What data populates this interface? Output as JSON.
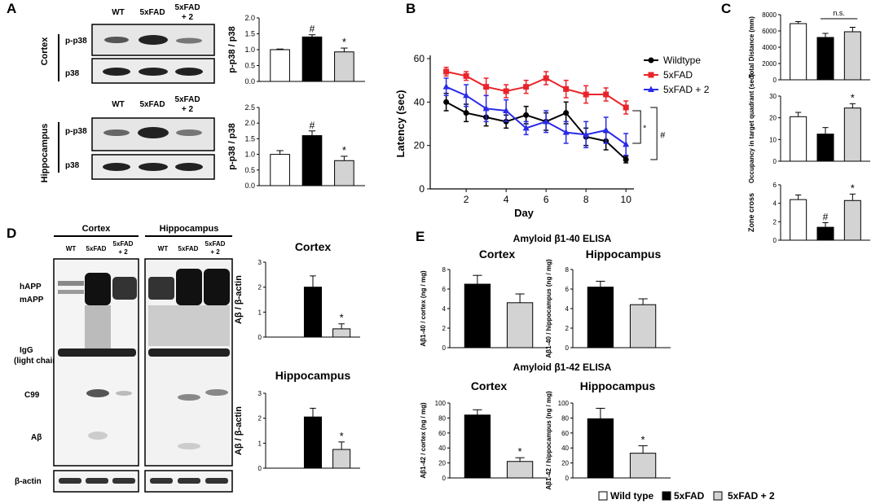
{
  "panels": {
    "A": "A",
    "B": "B",
    "C": "C",
    "D": "D",
    "E": "E"
  },
  "panelA": {
    "lanes": [
      "WT",
      "5xFAD",
      "5xFAD\n+ 2"
    ],
    "cortex": {
      "region": "Cortex",
      "bands": [
        "p-p38",
        "p38"
      ]
    },
    "hippocampus": {
      "region": "Hippocampus",
      "bands": [
        "p-p38",
        "p38"
      ]
    }
  },
  "panelD": {
    "regions": [
      "Cortex",
      "Hippocampus"
    ],
    "lanes": [
      "WT",
      "5xFAD",
      "5xFAD\n+ 2"
    ],
    "band_labels": [
      "hAPP",
      "mAPP",
      "IgG\n(light chain)",
      "C99",
      "Aβ"
    ],
    "loading": "β-actin"
  },
  "panelE": {
    "title40": "Amyloid β1-40 ELISA",
    "title42": "Amyloid β1-42 ELISA",
    "cortex": "Cortex",
    "hippocampus": "Hippocampus"
  },
  "legend": [
    "Wild type",
    "5xFAD",
    "5xFAD + 2"
  ],
  "colors": {
    "wt": "#ffffff",
    "fad": "#000000",
    "treat": "#d3d3d3",
    "wildtype_line": "#000000",
    "fad_line": "#e8242a",
    "treat_line": "#2a2ae8"
  },
  "chart_data": [
    {
      "id": "A-cortex",
      "type": "bar",
      "categories": [
        "WT",
        "5xFAD",
        "5xFAD + 2"
      ],
      "values": [
        1.0,
        1.4,
        0.93
      ],
      "errors": [
        0.02,
        0.07,
        0.12
      ],
      "marks": [
        "",
        "#",
        "*"
      ],
      "ylabel": "p-p38 / p38",
      "ylim": [
        0,
        2.0
      ],
      "ticks": [
        "0.0",
        "0.5",
        "1.0",
        "1.5",
        "2.0"
      ]
    },
    {
      "id": "A-hippo",
      "type": "bar",
      "categories": [
        "WT",
        "5xFAD",
        "5xFAD + 2"
      ],
      "values": [
        1.0,
        1.6,
        0.8
      ],
      "errors": [
        0.12,
        0.15,
        0.14
      ],
      "marks": [
        "",
        "#",
        "*"
      ],
      "ylabel": "p-p38 / p38",
      "ylim": [
        0,
        2.5
      ],
      "ticks": [
        "0.0",
        "0.5",
        "1.0",
        "1.5",
        "2.0",
        "2.5"
      ]
    },
    {
      "id": "B",
      "type": "line",
      "title": "",
      "xlabel": "Day",
      "ylabel": "Latency (sec)",
      "xlim": [
        0.2,
        10.4
      ],
      "ylim": [
        0,
        60
      ],
      "xticks": [
        "2",
        "4",
        "6",
        "8",
        "10"
      ],
      "yticks": [
        "0",
        "20",
        "40",
        "60"
      ],
      "x": [
        1,
        2,
        3,
        4,
        5,
        6,
        7,
        8,
        9,
        10
      ],
      "series": [
        {
          "name": "Wildtype",
          "values": [
            40,
            35,
            33,
            31,
            34,
            31,
            35,
            24,
            22,
            13.5
          ],
          "errors": [
            4,
            4,
            4,
            3,
            4,
            4,
            5,
            4,
            4,
            1.5
          ]
        },
        {
          "name": "5xFAD",
          "values": [
            54,
            52,
            47,
            45,
            47,
            51,
            46,
            43.5,
            43.5,
            37.5
          ],
          "errors": [
            2,
            2,
            4,
            3,
            3,
            3,
            4,
            4,
            3,
            3
          ]
        },
        {
          "name": "5xFAD + 2",
          "values": [
            47,
            43,
            37,
            36,
            28,
            31,
            26,
            25,
            27,
            20.5
          ],
          "errors": [
            4,
            5,
            6,
            5,
            3,
            5,
            5,
            6,
            6,
            5
          ]
        }
      ],
      "annotations": [
        "*",
        "#"
      ]
    },
    {
      "id": "C-distance",
      "type": "bar",
      "categories": [
        "WT",
        "5xFAD",
        "5xFAD + 2"
      ],
      "values": [
        6900,
        5200,
        5900
      ],
      "errors": [
        250,
        500,
        550
      ],
      "marks": [
        "",
        "",
        ""
      ],
      "ylabel": "Total Distance (mm)",
      "ylim": [
        0,
        8000
      ],
      "ticks": [
        "0",
        "2000",
        "4000",
        "6000",
        "8000"
      ],
      "annotation": "n.s."
    },
    {
      "id": "C-occupancy",
      "type": "bar",
      "categories": [
        "WT",
        "5xFAD",
        "5xFAD + 2"
      ],
      "values": [
        20.5,
        12.5,
        24.5
      ],
      "errors": [
        2,
        3,
        2
      ],
      "marks": [
        "",
        "",
        "*"
      ],
      "ylabel": "Occupancy in target quadrant (sec)",
      "ylim": [
        0,
        30
      ],
      "ticks": [
        "0",
        "10",
        "20",
        "30"
      ]
    },
    {
      "id": "C-zone",
      "type": "bar",
      "categories": [
        "WT",
        "5xFAD",
        "5xFAD + 2"
      ],
      "values": [
        4.4,
        1.4,
        4.3
      ],
      "errors": [
        0.5,
        0.5,
        0.7
      ],
      "marks": [
        "",
        "#",
        "*"
      ],
      "ylabel": "Zone cross",
      "ylim": [
        0,
        6
      ],
      "ticks": [
        "0",
        "2",
        "4",
        "6"
      ]
    },
    {
      "id": "D-cortex",
      "type": "bar",
      "title": "Cortex",
      "categories": [
        "WT",
        "5xFAD",
        "5xFAD + 2"
      ],
      "values": [
        0,
        2.0,
        0.33
      ],
      "errors": [
        0,
        0.45,
        0.2
      ],
      "marks": [
        "",
        "",
        "*"
      ],
      "ylabel": "Aβ / β-actin",
      "ylim": [
        0,
        3
      ],
      "ticks": [
        "0",
        "1",
        "2",
        "3"
      ]
    },
    {
      "id": "D-hippo",
      "type": "bar",
      "title": "Hippocampus",
      "categories": [
        "WT",
        "5xFAD",
        "5xFAD + 2"
      ],
      "values": [
        0,
        2.05,
        0.75
      ],
      "errors": [
        0,
        0.35,
        0.3
      ],
      "marks": [
        "",
        "",
        "*"
      ],
      "ylabel": "Aβ / β-actin",
      "ylim": [
        0,
        3
      ],
      "ticks": [
        "0",
        "1",
        "2",
        "3"
      ]
    },
    {
      "id": "E-40-cortex",
      "type": "bar",
      "title": "Cortex",
      "categories": [
        "5xFAD",
        "5xFAD + 2"
      ],
      "values": [
        6.5,
        4.6
      ],
      "errors": [
        0.9,
        0.9
      ],
      "marks": [
        "",
        ""
      ],
      "ylabel": "Aβ1-40 / cortex (ng / mg)",
      "ylim": [
        0,
        8
      ],
      "ticks": [
        "0",
        "2",
        "4",
        "6",
        "8"
      ]
    },
    {
      "id": "E-40-hippo",
      "type": "bar",
      "title": "Hippocampus",
      "categories": [
        "5xFAD",
        "5xFAD + 2"
      ],
      "values": [
        6.2,
        4.4
      ],
      "errors": [
        0.6,
        0.6
      ],
      "marks": [
        "",
        ""
      ],
      "ylabel": "Aβ1-40 / hippocampus (ng / mg)",
      "ylim": [
        0,
        8
      ],
      "ticks": [
        "0",
        "2",
        "4",
        "6",
        "8"
      ]
    },
    {
      "id": "E-42-cortex",
      "type": "bar",
      "title": "Cortex",
      "categories": [
        "5xFAD",
        "5xFAD + 2"
      ],
      "values": [
        84,
        22
      ],
      "errors": [
        7,
        5
      ],
      "marks": [
        "",
        "*"
      ],
      "ylabel": "Aβ1-42 / cortex (ng / mg)",
      "ylim": [
        0,
        100
      ],
      "ticks": [
        "0",
        "20",
        "40",
        "60",
        "80",
        "100"
      ]
    },
    {
      "id": "E-42-hippo",
      "type": "bar",
      "title": "Hippocampus",
      "categories": [
        "5xFAD",
        "5xFAD + 2"
      ],
      "values": [
        79,
        33
      ],
      "errors": [
        14,
        10
      ],
      "marks": [
        "",
        "*"
      ],
      "ylabel": "Aβ1-42 / hippocampus (ng / mg)",
      "ylim": [
        0,
        100
      ],
      "ticks": [
        "0",
        "20",
        "40",
        "60",
        "80",
        "100"
      ]
    }
  ]
}
